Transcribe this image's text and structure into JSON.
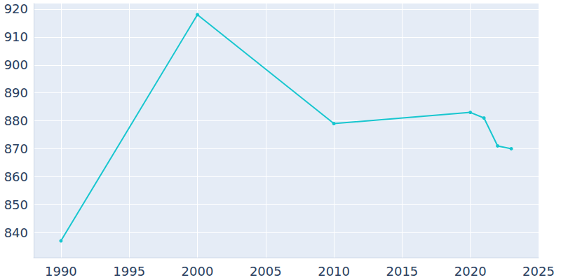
{
  "chart_data": {
    "type": "line",
    "x": [
      1990,
      2000,
      2010,
      2020,
      2021,
      2022,
      2023
    ],
    "values": [
      837,
      918,
      879,
      883,
      881,
      871,
      870
    ],
    "color": "#17c6cf",
    "marker": "circle",
    "xlim": [
      1988,
      2025
    ],
    "xticks": [
      1990,
      1995,
      2000,
      2005,
      2010,
      2015,
      2020,
      2025
    ],
    "ylim": [
      831,
      922
    ],
    "yticks": [
      840,
      850,
      860,
      870,
      880,
      890,
      900,
      910,
      920
    ],
    "grid": true
  }
}
